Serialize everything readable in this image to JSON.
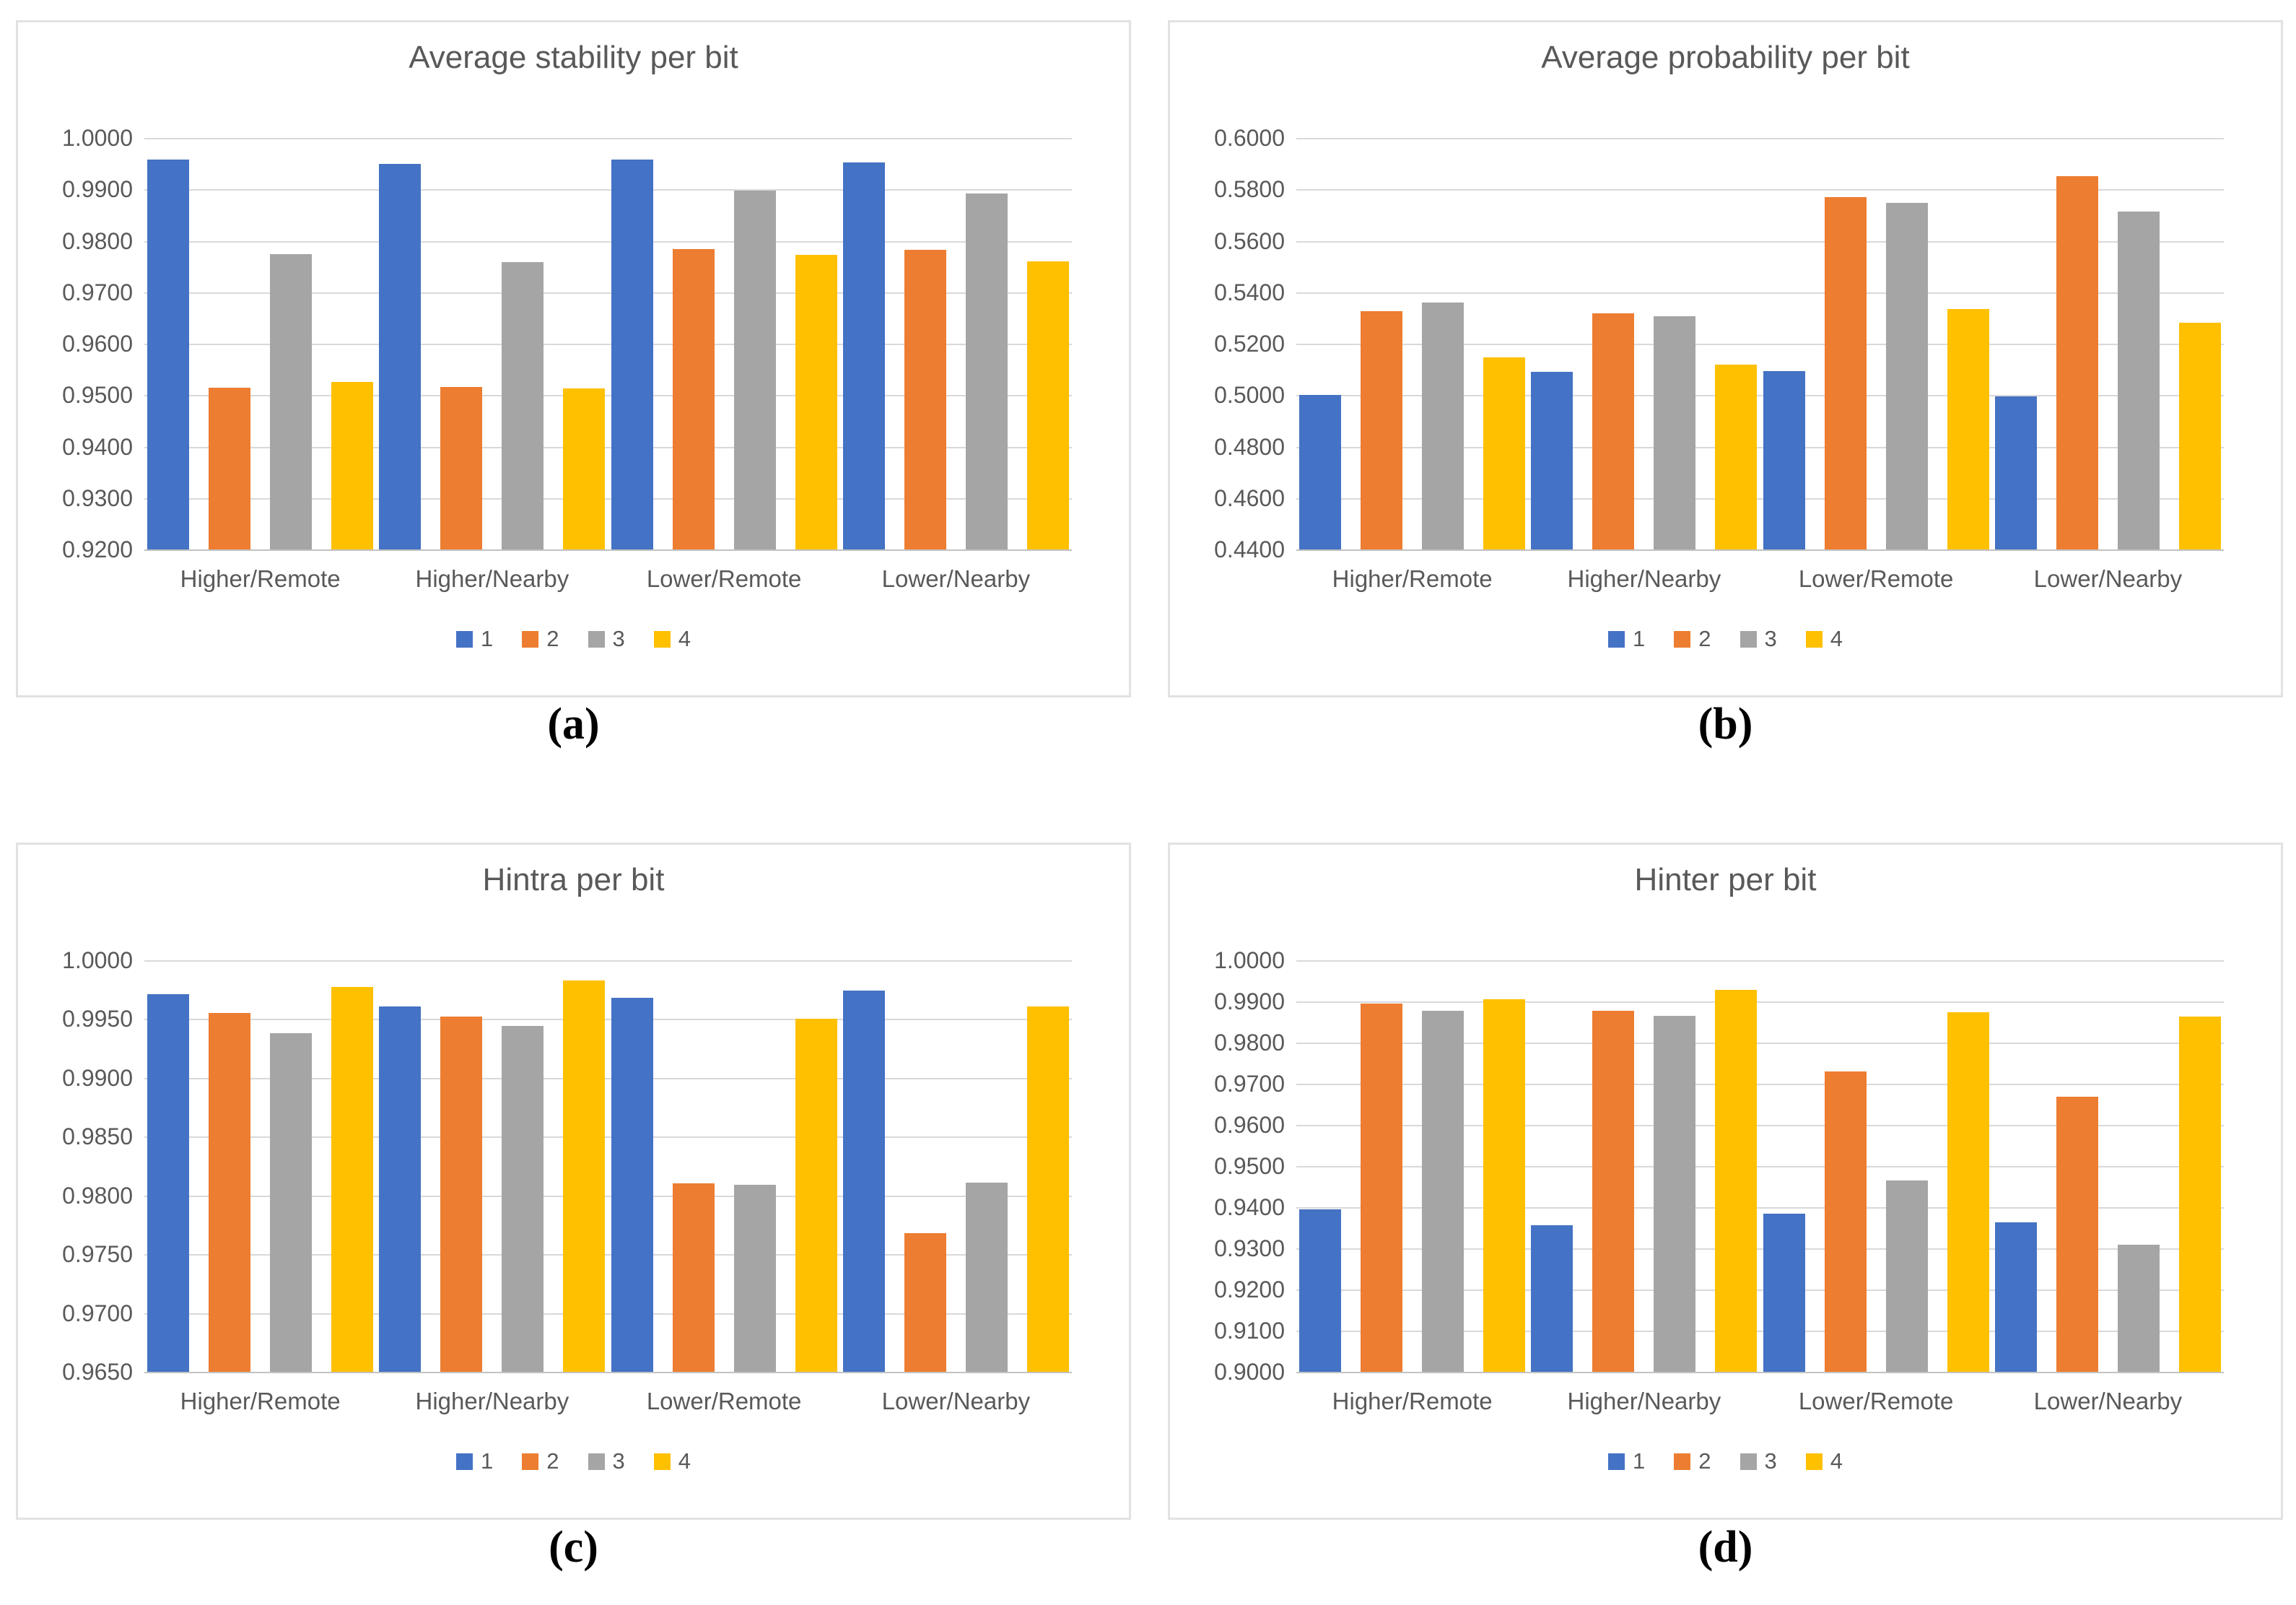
{
  "captions": [
    "(a)",
    "(b)",
    "(c)",
    "(d)"
  ],
  "legend_labels": [
    "1",
    "2",
    "3",
    "4"
  ],
  "categories": [
    "Higher/Remote",
    "Higher/Nearby",
    "Lower/Remote",
    "Lower/Nearby"
  ],
  "palette": {
    "series1_blue": "#4472C4",
    "series2_orange": "#ED7D31",
    "series3_gray": "#A5A5A5",
    "series4_yellow": "#FFC000",
    "text_gray": "#595959",
    "gridline_gray": "#D9D9D9"
  },
  "chart_data": [
    {
      "type": "bar",
      "title": "Average stability per bit",
      "xlabel": "",
      "ylabel": "",
      "ylim": [
        0.92,
        1.0
      ],
      "ytick_step": 0.01,
      "yticks": [
        "1.0000",
        "0.9900",
        "0.9800",
        "0.9700",
        "0.9600",
        "0.9500",
        "0.9400",
        "0.9300",
        "0.9200"
      ],
      "grid": true,
      "legend_position": "bottom",
      "categories": [
        "Higher/Remote",
        "Higher/Nearby",
        "Lower/Remote",
        "Lower/Nearby"
      ],
      "series": [
        {
          "name": "1",
          "color": "#4472C4",
          "values": [
            0.9958,
            0.995,
            0.9958,
            0.9953
          ]
        },
        {
          "name": "2",
          "color": "#ED7D31",
          "values": [
            0.9515,
            0.9516,
            0.9784,
            0.9783
          ]
        },
        {
          "name": "3",
          "color": "#A5A5A5",
          "values": [
            0.9774,
            0.9759,
            0.9897,
            0.9892
          ]
        },
        {
          "name": "4",
          "color": "#FFC000",
          "values": [
            0.9526,
            0.9513,
            0.9773,
            0.976
          ]
        }
      ]
    },
    {
      "type": "bar",
      "title": "Average probability per bit",
      "xlabel": "",
      "ylabel": "",
      "ylim": [
        0.44,
        0.6
      ],
      "ytick_step": 0.02,
      "yticks": [
        "0.6000",
        "0.5800",
        "0.5600",
        "0.5400",
        "0.5200",
        "0.5000",
        "0.4800",
        "0.4600",
        "0.4400"
      ],
      "grid": true,
      "legend_position": "bottom",
      "categories": [
        "Higher/Remote",
        "Higher/Nearby",
        "Lower/Remote",
        "Lower/Nearby"
      ],
      "series": [
        {
          "name": "1",
          "color": "#4472C4",
          "values": [
            0.5002,
            0.509,
            0.5092,
            0.4995
          ]
        },
        {
          "name": "2",
          "color": "#ED7D31",
          "values": [
            0.5325,
            0.5318,
            0.577,
            0.585
          ]
        },
        {
          "name": "3",
          "color": "#A5A5A5",
          "values": [
            0.536,
            0.5308,
            0.5748,
            0.5713
          ]
        },
        {
          "name": "4",
          "color": "#FFC000",
          "values": [
            0.5148,
            0.5118,
            0.5335,
            0.5282
          ]
        }
      ]
    },
    {
      "type": "bar",
      "title": "Hintra per bit",
      "xlabel": "",
      "ylabel": "",
      "ylim": [
        0.965,
        1.0
      ],
      "ytick_step": 0.005,
      "yticks": [
        "1.0000",
        "0.9950",
        "0.9900",
        "0.9850",
        "0.9800",
        "0.9750",
        "0.9700",
        "0.9650"
      ],
      "grid": true,
      "legend_position": "bottom",
      "categories": [
        "Higher/Remote",
        "Higher/Nearby",
        "Lower/Remote",
        "Lower/Nearby"
      ],
      "series": [
        {
          "name": "1",
          "color": "#4472C4",
          "values": [
            0.9971,
            0.9961,
            0.9968,
            0.9974
          ]
        },
        {
          "name": "2",
          "color": "#ED7D31",
          "values": [
            0.9955,
            0.9952,
            0.981,
            0.9768
          ]
        },
        {
          "name": "3",
          "color": "#A5A5A5",
          "values": [
            0.9938,
            0.9944,
            0.9809,
            0.9811
          ]
        },
        {
          "name": "4",
          "color": "#FFC000",
          "values": [
            0.9977,
            0.9983,
            0.995,
            0.9961
          ]
        }
      ]
    },
    {
      "type": "bar",
      "title": "Hinter per bit",
      "xlabel": "",
      "ylabel": "",
      "ylim": [
        0.9,
        1.0
      ],
      "ytick_step": 0.01,
      "yticks": [
        "1.0000",
        "0.9900",
        "0.9800",
        "0.9700",
        "0.9600",
        "0.9500",
        "0.9400",
        "0.9300",
        "0.9200",
        "0.9100",
        "0.9000"
      ],
      "grid": true,
      "legend_position": "bottom",
      "categories": [
        "Higher/Remote",
        "Higher/Nearby",
        "Lower/Remote",
        "Lower/Nearby"
      ],
      "series": [
        {
          "name": "1",
          "color": "#4472C4",
          "values": [
            0.9395,
            0.9356,
            0.9385,
            0.9364
          ]
        },
        {
          "name": "2",
          "color": "#ED7D31",
          "values": [
            0.9895,
            0.9878,
            0.973,
            0.9669
          ]
        },
        {
          "name": "3",
          "color": "#A5A5A5",
          "values": [
            0.9878,
            0.9865,
            0.9465,
            0.9309
          ]
        },
        {
          "name": "4",
          "color": "#FFC000",
          "values": [
            0.9906,
            0.9928,
            0.9874,
            0.9863
          ]
        }
      ]
    }
  ]
}
